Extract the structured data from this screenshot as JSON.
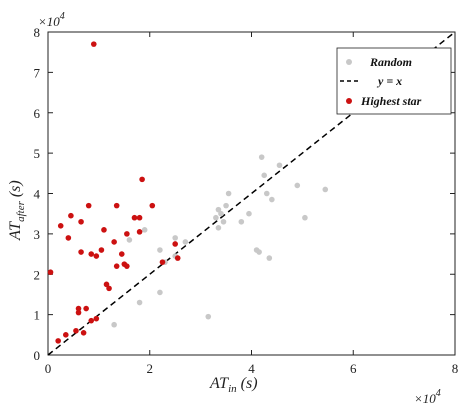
{
  "chart_data": {
    "type": "scatter",
    "title": "",
    "xlabel": "AT",
    "xlabel_sub": "in",
    "xlabel_unit": " (s)",
    "ylabel": "AT",
    "ylabel_sub": "after",
    "ylabel_unit": " (s)",
    "x_multiplier": "×10",
    "x_exponent": "4",
    "y_multiplier": "×10",
    "y_exponent": "4",
    "xlim": [
      0,
      8
    ],
    "ylim": [
      0,
      8
    ],
    "xticks": [
      "0",
      "2",
      "4",
      "6",
      "8"
    ],
    "yticks": [
      "0",
      "1",
      "2",
      "3",
      "4",
      "5",
      "6",
      "7",
      "8"
    ],
    "grid": false,
    "legend": "top-right",
    "series": [
      {
        "name": "Random",
        "color": "#c8c8c8",
        "marker": "dot",
        "points": [
          [
            1.3,
            0.75
          ],
          [
            1.8,
            1.3
          ],
          [
            2.2,
            1.55
          ],
          [
            2.3,
            2.3
          ],
          [
            2.5,
            2.45
          ],
          [
            1.6,
            2.85
          ],
          [
            1.9,
            3.1
          ],
          [
            2.5,
            2.9
          ],
          [
            2.7,
            2.8
          ],
          [
            2.2,
            2.6
          ],
          [
            3.15,
            0.95
          ],
          [
            3.3,
            3.4
          ],
          [
            3.35,
            3.6
          ],
          [
            3.4,
            3.5
          ],
          [
            3.5,
            3.7
          ],
          [
            3.45,
            3.3
          ],
          [
            3.55,
            4.0
          ],
          [
            3.35,
            3.15
          ],
          [
            3.8,
            3.3
          ],
          [
            3.95,
            3.5
          ],
          [
            4.1,
            2.6
          ],
          [
            4.15,
            2.55
          ],
          [
            4.2,
            4.9
          ],
          [
            4.25,
            4.45
          ],
          [
            4.3,
            4.0
          ],
          [
            4.35,
            2.4
          ],
          [
            4.4,
            3.85
          ],
          [
            4.55,
            4.7
          ],
          [
            4.9,
            4.2
          ],
          [
            5.05,
            3.4
          ],
          [
            5.45,
            4.1
          ]
        ]
      },
      {
        "name": "y = x",
        "color": "#000000",
        "style": "dashed",
        "line": [
          [
            0,
            0
          ],
          [
            8,
            8
          ]
        ]
      },
      {
        "name": "Highest star",
        "color": "#cc1111",
        "marker": "dot",
        "points": [
          [
            0.05,
            2.05
          ],
          [
            0.2,
            0.35
          ],
          [
            0.25,
            3.2
          ],
          [
            0.35,
            0.5
          ],
          [
            0.4,
            2.9
          ],
          [
            0.45,
            3.45
          ],
          [
            0.55,
            0.6
          ],
          [
            0.6,
            1.05
          ],
          [
            0.6,
            1.15
          ],
          [
            0.65,
            2.55
          ],
          [
            0.65,
            3.3
          ],
          [
            0.7,
            0.55
          ],
          [
            0.75,
            1.15
          ],
          [
            0.8,
            3.7
          ],
          [
            0.85,
            0.85
          ],
          [
            0.85,
            2.5
          ],
          [
            0.9,
            7.7
          ],
          [
            0.95,
            2.45
          ],
          [
            0.95,
            0.9
          ],
          [
            1.05,
            2.6
          ],
          [
            1.1,
            3.1
          ],
          [
            1.15,
            1.75
          ],
          [
            1.2,
            1.65
          ],
          [
            1.3,
            2.8
          ],
          [
            1.35,
            3.7
          ],
          [
            1.35,
            2.2
          ],
          [
            1.45,
            2.5
          ],
          [
            1.5,
            2.25
          ],
          [
            1.55,
            2.2
          ],
          [
            1.55,
            3.0
          ],
          [
            1.7,
            3.4
          ],
          [
            1.8,
            3.05
          ],
          [
            1.8,
            3.4
          ],
          [
            1.85,
            4.35
          ],
          [
            2.05,
            3.7
          ],
          [
            2.25,
            2.3
          ],
          [
            2.5,
            2.75
          ],
          [
            2.55,
            2.4
          ]
        ]
      }
    ]
  }
}
